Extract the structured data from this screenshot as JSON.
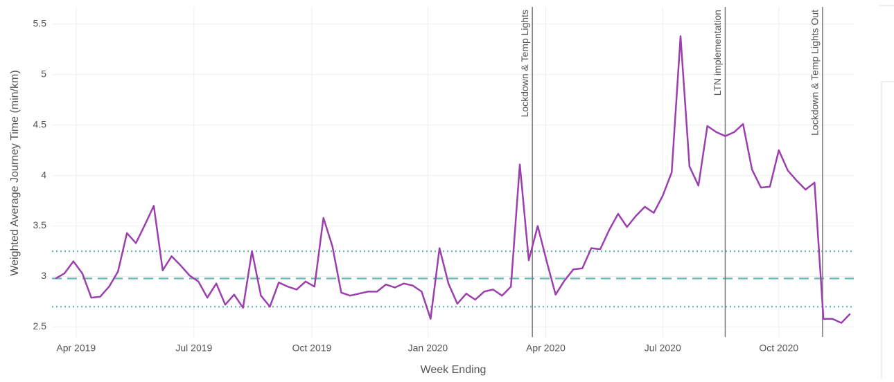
{
  "chart_data": {
    "type": "line",
    "x_title": "Week Ending",
    "y_title": "Weighted Average Journey Time (min/km)",
    "series": [
      {
        "name": "Weighted Average Journey Time",
        "color": "#9c3fae",
        "values": [
          2.98,
          3.03,
          3.15,
          3.03,
          2.79,
          2.8,
          2.9,
          3.05,
          3.43,
          3.33,
          3.51,
          3.7,
          3.06,
          3.2,
          3.11,
          3.01,
          2.95,
          2.79,
          2.93,
          2.72,
          2.82,
          2.69,
          3.25,
          2.81,
          2.7,
          2.94,
          2.9,
          2.87,
          2.95,
          2.9,
          3.58,
          3.3,
          2.84,
          2.81,
          2.83,
          2.85,
          2.85,
          2.92,
          2.89,
          2.93,
          2.91,
          2.85,
          2.58,
          3.28,
          2.93,
          2.73,
          2.83,
          2.77,
          2.85,
          2.87,
          2.81,
          2.9,
          4.11,
          3.16,
          3.5,
          3.15,
          2.82,
          2.96,
          3.07,
          3.08,
          3.28,
          3.27,
          3.46,
          3.62,
          3.49,
          3.6,
          3.69,
          3.63,
          3.8,
          4.03,
          5.38,
          4.09,
          3.9,
          4.49,
          4.43,
          4.39,
          4.43,
          4.51,
          4.06,
          3.88,
          3.89,
          4.25,
          4.05,
          3.95,
          3.86,
          3.93,
          2.58,
          2.58,
          2.54,
          2.63
        ]
      }
    ],
    "xlim": [
      -0.4,
      89.4
    ],
    "xticks": [
      {
        "value": 2.3,
        "label": "Apr 2019"
      },
      {
        "value": 15.5,
        "label": "Jul 2019"
      },
      {
        "value": 28.7,
        "label": "Oct 2019"
      },
      {
        "value": 41.7,
        "label": "Jan 2020"
      },
      {
        "value": 54.9,
        "label": "Apr 2020"
      },
      {
        "value": 68.0,
        "label": "Jul 2020"
      },
      {
        "value": 81.0,
        "label": "Oct 2020"
      }
    ],
    "ylim": [
      2.4,
      5.67
    ],
    "yticks": [
      2.5,
      3,
      3.5,
      4,
      4.5,
      5,
      5.5
    ],
    "grid": true,
    "reference_lines": [
      {
        "y": 3.25,
        "dash": "dot",
        "color": "#6fbcbc"
      },
      {
        "y": 2.98,
        "dash": "dash",
        "color": "#6fbcbc"
      },
      {
        "y": 2.7,
        "dash": "dot",
        "color": "#6fbcbc"
      }
    ],
    "events": [
      {
        "x": 53.4,
        "label": "Lockdown & Temp Lights"
      },
      {
        "x": 75.0,
        "label": "LTN implementation"
      },
      {
        "x": 85.9,
        "label": "Lockdown & Temp Lights Out"
      }
    ]
  }
}
